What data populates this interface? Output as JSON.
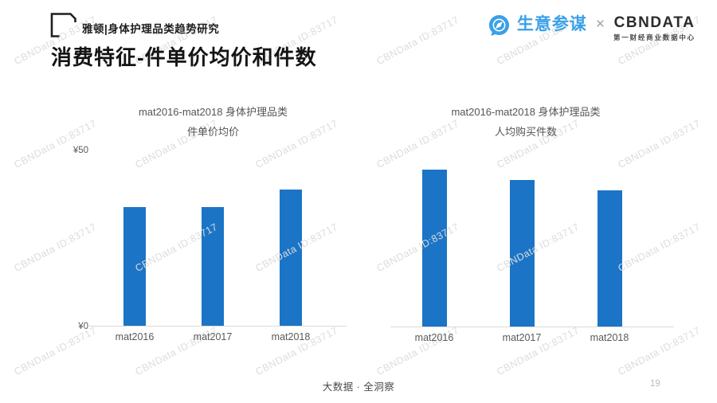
{
  "page": {
    "header": {
      "tag": "雅顿|身体护理品类趋势研究",
      "title": "消费特征-件单价均价和件数"
    },
    "brand": {
      "sycm": "生意参谋",
      "multiply": "×",
      "cbndata": "CBNDATA",
      "cbndata_subtitle": "第一财经商业数据中心"
    },
    "footer": {
      "slogan": "大数据 · 全洞察",
      "page_number": "19"
    },
    "watermark": {
      "text": "CBNData ID:83717"
    },
    "colors": {
      "bar_blue": "#1B74C6",
      "brand_blue": "#3AA0E8",
      "axis_line": "#D9D9D9",
      "watermark_gray": "#DCDCDC"
    }
  },
  "chart_data": [
    {
      "type": "bar",
      "title": "mat2016-mat2018 身体护理品类",
      "subtitle": "件单价均价",
      "categories": [
        "mat2016",
        "mat2017",
        "mat2018"
      ],
      "values": [
        34,
        34,
        39
      ],
      "unit": "¥",
      "ylim": [
        0,
        50
      ],
      "y_tick_top": "¥50",
      "y_tick_bottom": "¥0",
      "grid": false,
      "legend": false
    },
    {
      "type": "bar",
      "title": "mat2016-mat2018 身体护理品类",
      "subtitle": "人均购买件数",
      "categories": [
        "mat2016",
        "mat2017",
        "mat2018"
      ],
      "values": [
        45,
        42,
        39
      ],
      "ylim": [
        0,
        50
      ],
      "y_axis_labels_visible": false,
      "values_estimated_from_bar_heights": true,
      "grid": false,
      "legend": false
    }
  ]
}
